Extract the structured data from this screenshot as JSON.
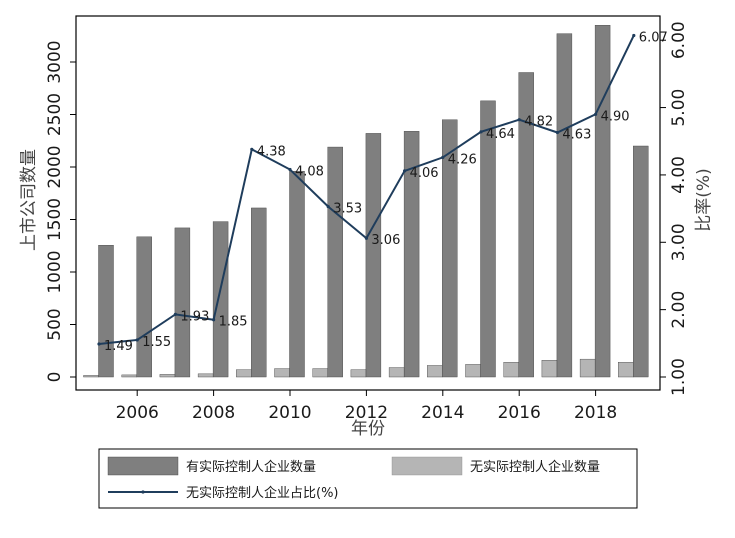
{
  "chart_data": {
    "type": "bar",
    "title": "",
    "xlabel": "年份",
    "ylabel": "上市公司数量",
    "y2label": "比率(%)",
    "x": [
      2005,
      2006,
      2007,
      2008,
      2009,
      2010,
      2011,
      2012,
      2013,
      2014,
      2015,
      2016,
      2017,
      2018,
      2019
    ],
    "x_ticks": [
      2006,
      2008,
      2010,
      2012,
      2014,
      2016,
      2018
    ],
    "ylim": [
      0,
      3400
    ],
    "y_ticks": [
      0,
      500,
      1000,
      1500,
      2000,
      2500,
      3000
    ],
    "y2lim": [
      1.0,
      6.3
    ],
    "y2_ticks": [
      "1.00",
      "2.00",
      "3.00",
      "4.00",
      "5.00",
      "6.00"
    ],
    "series": [
      {
        "name": "有实际控制人企业数量",
        "kind": "bar",
        "color": "#7f7f7f",
        "values": [
          1255,
          1335,
          1420,
          1480,
          1610,
          1960,
          2190,
          2320,
          2340,
          2450,
          2630,
          2900,
          3270,
          3350,
          2200
        ]
      },
      {
        "name": "无实际控制人企业数量",
        "kind": "bar",
        "color": "#b5b5b5",
        "values": [
          15,
          20,
          25,
          30,
          70,
          80,
          80,
          70,
          90,
          110,
          120,
          140,
          160,
          170,
          140
        ]
      },
      {
        "name": "无实际控制人企业占比(%)",
        "kind": "line",
        "axis": "y2",
        "color": "#1f3d5c",
        "values": [
          1.49,
          1.55,
          1.93,
          1.85,
          4.38,
          4.08,
          3.53,
          3.06,
          4.06,
          4.26,
          4.64,
          4.82,
          4.63,
          4.9,
          6.07
        ],
        "labels": [
          "1.49",
          "1.55",
          "1.93",
          "1.85",
          "4.38",
          "4.08",
          "3.53",
          "3.06",
          "4.06",
          "4.26",
          "4.64",
          "4.82",
          "4.63",
          "4.90",
          "6.07"
        ]
      }
    ],
    "legend_position": "bottom",
    "grid": false
  }
}
